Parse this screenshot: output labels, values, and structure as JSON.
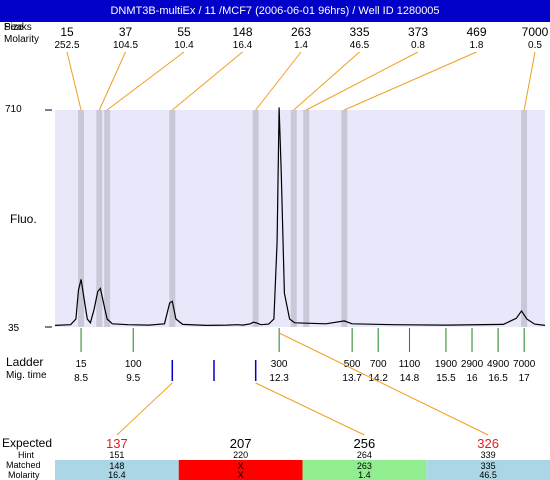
{
  "title": "DNMT3B-multiEx / 11 /MCF7 (2006-06-01 96hrs) / Well ID 1280005",
  "row_labels": {
    "peak": "Peaks",
    "size": "Size",
    "molarity": "Molarity",
    "fluo": "Fluo.",
    "ladder": "Ladder",
    "mig_time": "Mig. time",
    "expected": "Expected",
    "hint": "Hint",
    "matched": "Matched",
    "molarity_bottom": "Molarity"
  },
  "colors": {
    "title_bg": "#0000c8",
    "plot_bg": "#e8e8fa",
    "peak_band": "#c8c8d8",
    "leader": "#f0a020",
    "ladder_tick": "#208020",
    "hint_mark": "#0000c8",
    "expected_fail": "#e02020",
    "cell_blue": "#aad6e6",
    "cell_red": "#ff0000",
    "cell_green": "#90ee90"
  },
  "chart_data": {
    "type": "line",
    "title": "DNMT3B-multiEx / 11 /MCF7 (2006-06-01 96hrs) / Well ID 1280005",
    "ylabel": "Fluo.",
    "xlabel": "Mig. time",
    "ylim": [
      35,
      710
    ],
    "y_ticks": [
      "710",
      "35"
    ],
    "peaks": [
      {
        "size": "15",
        "molarity": "252.5",
        "time": 8.5
      },
      {
        "size": "37",
        "molarity": "104.5",
        "time": 8.85
      },
      {
        "size": "55",
        "molarity": "10.4",
        "time": 9.0
      },
      {
        "size": "148",
        "molarity": "16.4",
        "time": 10.25
      },
      {
        "size": "263",
        "molarity": "1.4",
        "time": 11.85
      },
      {
        "size": "335",
        "molarity": "46.5",
        "time": 12.58
      },
      {
        "size": "373",
        "molarity": "0.8",
        "time": 12.82
      },
      {
        "size": "469",
        "molarity": "1.8",
        "time": 13.55
      },
      {
        "size": "7000",
        "molarity": "0.5",
        "time": 17.0
      }
    ],
    "trace": [
      [
        8.0,
        40
      ],
      [
        8.3,
        42
      ],
      [
        8.4,
        60
      ],
      [
        8.45,
        150
      ],
      [
        8.5,
        183
      ],
      [
        8.55,
        130
      ],
      [
        8.62,
        60
      ],
      [
        8.68,
        48
      ],
      [
        8.75,
        90
      ],
      [
        8.82,
        145
      ],
      [
        8.87,
        155
      ],
      [
        8.93,
        110
      ],
      [
        9.0,
        60
      ],
      [
        9.1,
        45
      ],
      [
        9.4,
        42
      ],
      [
        9.8,
        41
      ],
      [
        10.1,
        45
      ],
      [
        10.2,
        110
      ],
      [
        10.25,
        115
      ],
      [
        10.32,
        60
      ],
      [
        10.45,
        43
      ],
      [
        10.9,
        40
      ],
      [
        11.3,
        41
      ],
      [
        11.5,
        42
      ],
      [
        11.6,
        41
      ],
      [
        11.75,
        45
      ],
      [
        11.8,
        50
      ],
      [
        11.86,
        48
      ],
      [
        11.95,
        42
      ],
      [
        12.1,
        44
      ],
      [
        12.2,
        60
      ],
      [
        12.26,
        300
      ],
      [
        12.3,
        735
      ],
      [
        12.34,
        520
      ],
      [
        12.4,
        140
      ],
      [
        12.5,
        60
      ],
      [
        12.6,
        48
      ],
      [
        13.2,
        45
      ],
      [
        13.55,
        54
      ],
      [
        13.7,
        45
      ],
      [
        14.5,
        42
      ],
      [
        15.5,
        41
      ],
      [
        16.6,
        43
      ],
      [
        16.85,
        62
      ],
      [
        16.95,
        85
      ],
      [
        17.05,
        60
      ],
      [
        17.2,
        44
      ],
      [
        17.4,
        40
      ]
    ],
    "ladder": [
      {
        "size": "15",
        "time": "8.5"
      },
      {
        "size": "100",
        "time": "9.5"
      },
      {
        "size": "300",
        "time": "12.3"
      },
      {
        "size": "500",
        "time": "13.7"
      },
      {
        "size": "700",
        "time": "14.2"
      },
      {
        "size": "1100",
        "time": "14.8"
      },
      {
        "size": "1900",
        "time": "15.5"
      },
      {
        "size": "2900",
        "time": "16"
      },
      {
        "size": "4900",
        "time": "16.5"
      },
      {
        "size": "7000",
        "time": "17"
      }
    ],
    "hint_marks": [
      10.25,
      11.05,
      11.85
    ],
    "expected": [
      {
        "expected": "137",
        "hint": "151",
        "matched": "148",
        "molarity": "16.4",
        "status": "fail"
      },
      {
        "expected": "207",
        "hint": "220",
        "matched": "X",
        "molarity": "X",
        "status": "missing"
      },
      {
        "expected": "256",
        "hint": "264",
        "matched": "263",
        "molarity": "1.4",
        "status": "pass"
      },
      {
        "expected": "326",
        "hint": "339",
        "matched": "335",
        "molarity": "46.5",
        "status": "fail"
      }
    ]
  }
}
